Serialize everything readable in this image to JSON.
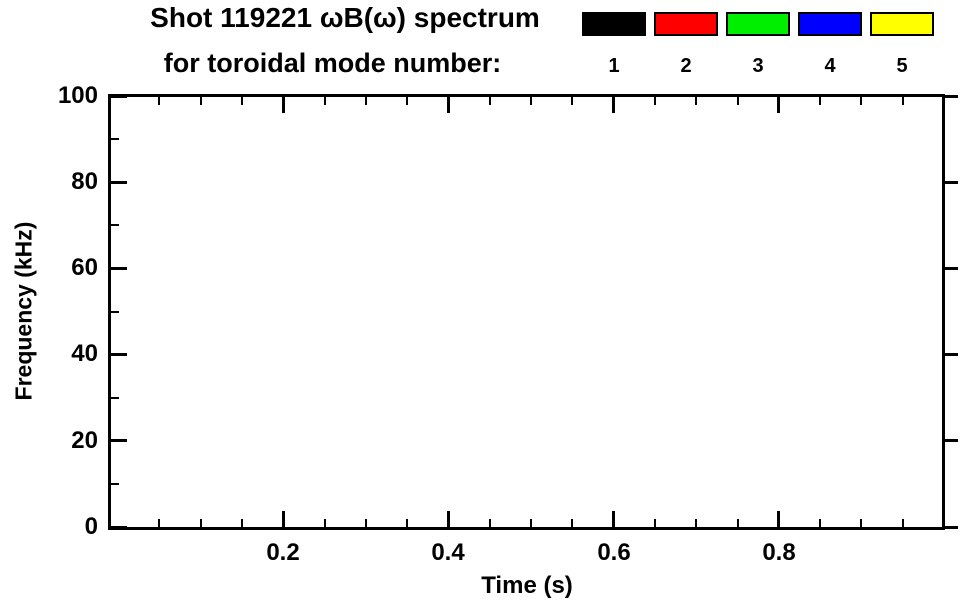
{
  "header": {
    "title_line1": "Shot 119221 ωB(ω) spectrum",
    "title_line2": "for toroidal mode number:"
  },
  "legend": {
    "entries": [
      {
        "label": "1",
        "color": "#000000"
      },
      {
        "label": "2",
        "color": "#ff0000"
      },
      {
        "label": "3",
        "color": "#00ee00"
      },
      {
        "label": "4",
        "color": "#0000ff"
      },
      {
        "label": "5",
        "color": "#ffff00"
      }
    ]
  },
  "chart_data": {
    "type": "heatmap",
    "title": "Shot 119221 ωB(ω) spectrum for toroidal mode number: 1 2 3 4 5",
    "xlabel": "Time (s)",
    "ylabel": "Frequency (kHz)",
    "xlim": [
      0,
      1.0
    ],
    "ylim": [
      0,
      100
    ],
    "grid": false,
    "legend_position": "top-right",
    "legend_entries": [
      "1",
      "2",
      "3",
      "4",
      "5"
    ],
    "xticks": [
      0.2,
      0.4,
      0.6,
      0.8
    ],
    "xtick_labels": [
      "0.2",
      "0.4",
      "0.6",
      "0.8"
    ],
    "xminor": [
      0.05,
      0.1,
      0.15,
      0.25,
      0.3,
      0.35,
      0.45,
      0.5,
      0.55,
      0.65,
      0.7,
      0.75,
      0.85,
      0.9,
      0.95
    ],
    "yticks": [
      0,
      20,
      40,
      60,
      80,
      100
    ],
    "ytick_labels": [
      "100",
      "80",
      "60",
      "40",
      "20",
      "0"
    ],
    "yminor": [
      10,
      30,
      50,
      70,
      90
    ],
    "series": []
  }
}
